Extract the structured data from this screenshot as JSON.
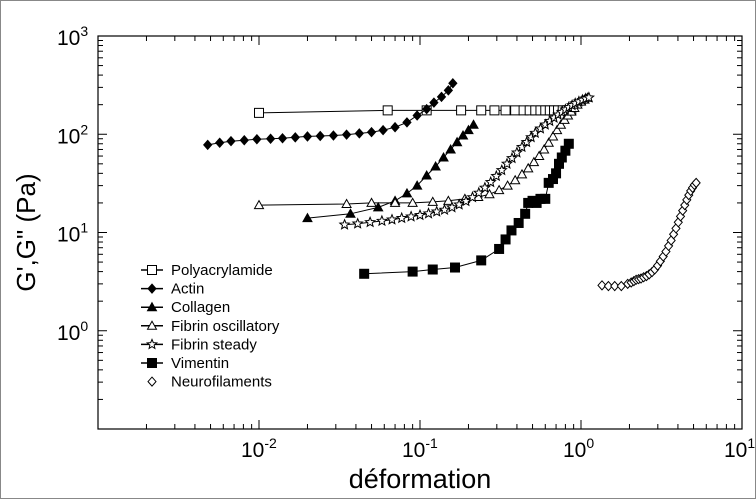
{
  "chart_data": {
    "type": "line",
    "xlabel": "déformation",
    "ylabel": "G',G\" (Pa)",
    "xscale": "log",
    "yscale": "log",
    "xlim": [
      0.001,
      10
    ],
    "ylim": [
      0.1,
      1000
    ],
    "x_ticks": [
      {
        "value": 0.01,
        "base": "10",
        "exp": "-2"
      },
      {
        "value": 0.1,
        "base": "10",
        "exp": "-1"
      },
      {
        "value": 1,
        "base": "10",
        "exp": "0"
      },
      {
        "value": 10,
        "base": "10",
        "exp": "1"
      }
    ],
    "y_ticks": [
      {
        "value": 1,
        "base": "10",
        "exp": "0"
      },
      {
        "value": 10,
        "base": "10",
        "exp": "1"
      },
      {
        "value": 100,
        "base": "10",
        "exp": "2"
      },
      {
        "value": 1000,
        "base": "10",
        "exp": "3"
      }
    ],
    "grid": false,
    "legend_position": "bottom-left",
    "series": [
      {
        "name": "Polyacrylamide",
        "marker": "square-open",
        "x": [
          0.01,
          0.063,
          0.11,
          0.18,
          0.24,
          0.29,
          0.34,
          0.39,
          0.44,
          0.48,
          0.52,
          0.56,
          0.6,
          0.64,
          0.68,
          0.72,
          0.77,
          0.82,
          0.87
        ],
        "y": [
          165,
          175,
          175,
          175,
          175,
          175,
          175,
          175,
          175,
          175,
          175,
          175,
          175,
          175,
          175,
          175,
          175,
          175,
          175
        ]
      },
      {
        "name": "Actin",
        "marker": "diamond-filled",
        "x": [
          0.0048,
          0.0057,
          0.0067,
          0.0081,
          0.0097,
          0.0118,
          0.014,
          0.0168,
          0.02,
          0.024,
          0.029,
          0.035,
          0.042,
          0.05,
          0.059,
          0.07,
          0.083,
          0.096,
          0.11,
          0.122,
          0.136,
          0.15,
          0.16
        ],
        "y": [
          78,
          82,
          85,
          87,
          89,
          90,
          91,
          93,
          95,
          96,
          97,
          99,
          102,
          105,
          110,
          118,
          132,
          155,
          180,
          210,
          240,
          280,
          330
        ]
      },
      {
        "name": "Collagen",
        "marker": "triangle-filled",
        "x": [
          0.02,
          0.037,
          0.055,
          0.07,
          0.083,
          0.096,
          0.11,
          0.125,
          0.14,
          0.155,
          0.17,
          0.185,
          0.2,
          0.215
        ],
        "y": [
          14,
          15.5,
          18,
          21,
          25,
          30,
          38,
          47,
          58,
          70,
          83,
          97,
          110,
          125
        ]
      },
      {
        "name": "Fibrin oscillatory",
        "marker": "triangle-open",
        "x": [
          0.01,
          0.035,
          0.05,
          0.07,
          0.09,
          0.12,
          0.15,
          0.19,
          0.23,
          0.27,
          0.31,
          0.35,
          0.39,
          0.43,
          0.47,
          0.51,
          0.55,
          0.59,
          0.63,
          0.67,
          0.71,
          0.75,
          0.79,
          0.83,
          0.87,
          0.91,
          0.95,
          1.0,
          1.05,
          1.1
        ],
        "y": [
          19,
          19.5,
          20,
          20,
          20,
          20.5,
          21,
          22,
          23,
          24.5,
          27,
          30,
          34,
          39,
          45,
          52,
          60,
          70,
          82,
          95,
          110,
          125,
          140,
          155,
          170,
          185,
          200,
          215,
          225,
          235
        ]
      },
      {
        "name": "Fibrin steady",
        "marker": "star-open",
        "x": [
          0.034,
          0.041,
          0.049,
          0.058,
          0.067,
          0.077,
          0.088,
          0.1,
          0.113,
          0.127,
          0.142,
          0.158,
          0.175,
          0.193,
          0.212,
          0.232,
          0.253,
          0.275,
          0.298,
          0.322,
          0.347,
          0.373,
          0.4,
          0.43,
          0.46,
          0.49,
          0.52,
          0.56,
          0.6,
          0.64,
          0.68,
          0.72,
          0.76,
          0.8,
          0.84,
          0.88,
          0.92,
          0.97,
          1.02,
          1.07,
          1.12
        ],
        "y": [
          12,
          12.3,
          12.7,
          13.1,
          13.5,
          14,
          14.5,
          15,
          15.6,
          16.3,
          17,
          18,
          19.2,
          20.8,
          22.8,
          25.3,
          28.5,
          32.5,
          37.5,
          43,
          50,
          57,
          65,
          74,
          83,
          93,
          103,
          114,
          125,
          136,
          147,
          158,
          168,
          178,
          188,
          197,
          206,
          215,
          223,
          230,
          236
        ]
      },
      {
        "name": "Vimentin",
        "marker": "square-filled",
        "x": [
          0.045,
          0.09,
          0.12,
          0.165,
          0.24,
          0.31,
          0.34,
          0.37,
          0.41,
          0.45,
          0.47,
          0.5,
          0.53,
          0.56,
          0.6,
          0.63,
          0.67,
          0.7,
          0.73,
          0.76,
          0.8,
          0.84
        ],
        "y": [
          3.8,
          4,
          4.2,
          4.4,
          5.2,
          6.8,
          8.5,
          10.5,
          12.5,
          15.5,
          20,
          21,
          20,
          22,
          22,
          32,
          35,
          40,
          50,
          58,
          68,
          80
        ]
      },
      {
        "name": "Neurofilaments",
        "marker": "diamond-open",
        "x": [
          1.35,
          1.48,
          1.62,
          1.78,
          1.95,
          2.05,
          2.13,
          2.2,
          2.28,
          2.36,
          2.45,
          2.55,
          2.65,
          2.76,
          2.87,
          2.99,
          3.11,
          3.24,
          3.37,
          3.5,
          3.63,
          3.76,
          3.89,
          4.02,
          4.15,
          4.28,
          4.41,
          4.54,
          4.67,
          4.8,
          4.93,
          5.06,
          5.19
        ],
        "y": [
          2.9,
          2.85,
          2.85,
          2.85,
          3,
          3.1,
          3.2,
          3.3,
          3.35,
          3.4,
          3.5,
          3.6,
          3.75,
          3.95,
          4.2,
          4.6,
          5.1,
          5.7,
          6.4,
          7.3,
          8.3,
          9.6,
          11,
          12.7,
          14.6,
          16.7,
          19,
          21.5,
          24,
          26.5,
          28.5,
          30.5,
          32
        ]
      }
    ]
  }
}
